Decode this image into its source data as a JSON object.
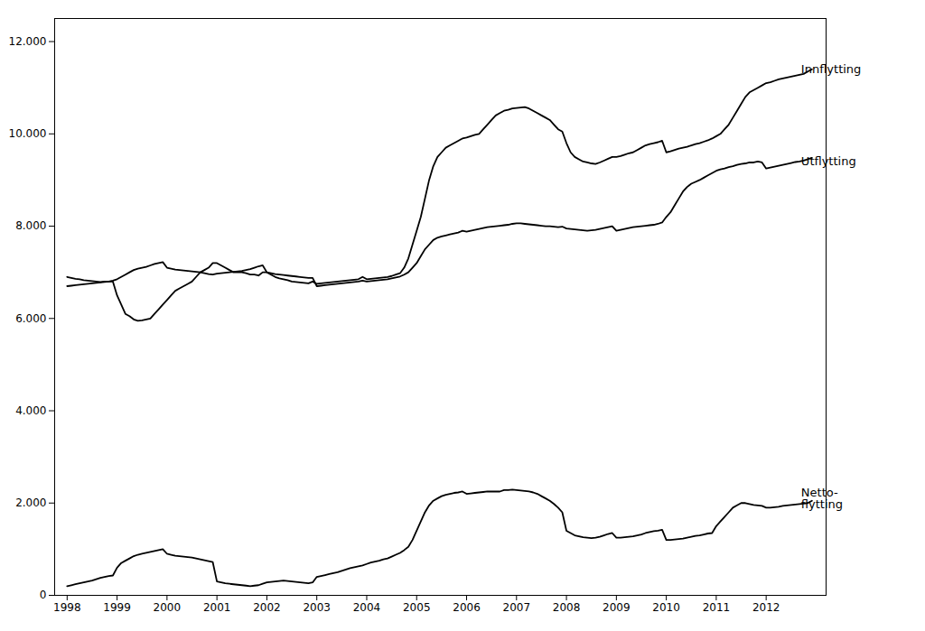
{
  "chart_data": {
    "type": "line",
    "x": [
      1998,
      1998.083333333333,
      1998.166666666667,
      1998.25,
      1998.333333333333,
      1998.416666666667,
      1998.5,
      1998.583333333333,
      1998.666666666667,
      1998.75,
      1998.833333333333,
      1998.916666666667,
      1999,
      1999.083333333333,
      1999.166666666667,
      1999.25,
      1999.333333333333,
      1999.416666666667,
      1999.5,
      1999.583333333333,
      1999.666666666667,
      1999.75,
      1999.833333333333,
      1999.916666666667,
      2000,
      2000.083333333333,
      2000.166666666667,
      2000.25,
      2000.333333333333,
      2000.416666666667,
      2000.5,
      2000.583333333333,
      2000.666666666667,
      2000.75,
      2000.833333333333,
      2000.916666666667,
      2001,
      2001.083333333333,
      2001.166666666667,
      2001.25,
      2001.333333333333,
      2001.416666666667,
      2001.5,
      2001.583333333333,
      2001.666666666667,
      2001.75,
      2001.833333333333,
      2001.916666666667,
      2002,
      2002.083333333333,
      2002.166666666667,
      2002.25,
      2002.333333333333,
      2002.416666666667,
      2002.5,
      2002.583333333333,
      2002.666666666667,
      2002.75,
      2002.833333333333,
      2002.916666666667,
      2003,
      2003.083333333333,
      2003.166666666667,
      2003.25,
      2003.333333333333,
      2003.416666666667,
      2003.5,
      2003.583333333333,
      2003.666666666667,
      2003.75,
      2003.833333333333,
      2003.916666666667,
      2004,
      2004.083333333333,
      2004.166666666667,
      2004.25,
      2004.333333333333,
      2004.416666666667,
      2004.5,
      2004.583333333333,
      2004.666666666667,
      2004.75,
      2004.833333333333,
      2004.916666666667,
      2005,
      2005.083333333333,
      2005.166666666667,
      2005.25,
      2005.333333333333,
      2005.416666666667,
      2005.5,
      2005.583333333333,
      2005.666666666667,
      2005.75,
      2005.833333333333,
      2005.916666666667,
      2006,
      2006.083333333333,
      2006.166666666667,
      2006.25,
      2006.333333333333,
      2006.416666666667,
      2006.5,
      2006.583333333333,
      2006.666666666667,
      2006.75,
      2006.833333333333,
      2006.916666666667,
      2007,
      2007.083333333333,
      2007.166666666667,
      2007.25,
      2007.333333333333,
      2007.416666666667,
      2007.5,
      2007.583333333333,
      2007.666666666667,
      2007.75,
      2007.833333333333,
      2007.916666666667,
      2008,
      2008.083333333333,
      2008.166666666667,
      2008.25,
      2008.333333333333,
      2008.416666666667,
      2008.5,
      2008.583333333333,
      2008.666666666667,
      2008.75,
      2008.833333333333,
      2008.916666666667,
      2009,
      2009.083333333333,
      2009.166666666667,
      2009.25,
      2009.333333333333,
      2009.416666666667,
      2009.5,
      2009.583333333333,
      2009.666666666667,
      2009.75,
      2009.833333333333,
      2009.916666666667,
      2010,
      2010.083333333333,
      2010.166666666667,
      2010.25,
      2010.333333333333,
      2010.416666666667,
      2010.5,
      2010.583333333333,
      2010.666666666667,
      2010.75,
      2010.833333333333,
      2010.916666666667,
      2011,
      2011.083333333333,
      2011.166666666667,
      2011.25,
      2011.333333333333,
      2011.416666666667,
      2011.5,
      2011.583333333333,
      2011.666666666667,
      2011.75,
      2011.833333333333,
      2011.916666666667,
      2012,
      2012.083333333333,
      2012.166666666667,
      2012.25,
      2012.333333333333,
      2012.416666666667,
      2012.5,
      2012.583333333333,
      2012.666666666667,
      2012.75,
      2012.833333333333,
      2012.916666666667
    ],
    "series": [
      {
        "values": [
          6900,
          6880,
          6860,
          6850,
          6830,
          6820,
          6810,
          6800,
          6790,
          6800,
          6800,
          6800,
          6500,
          6300,
          6100,
          6050,
          5980,
          5950,
          5960,
          5980,
          6000,
          6100,
          6200,
          6300,
          6400,
          6500,
          6600,
          6650,
          6700,
          6750,
          6800,
          6900,
          7000,
          7050,
          7100,
          7200,
          7200,
          7150,
          7100,
          7050,
          7000,
          7000,
          7000,
          6980,
          6950,
          6950,
          6930,
          7000,
          7000,
          6950,
          6900,
          6870,
          6850,
          6830,
          6800,
          6790,
          6780,
          6770,
          6760,
          6800,
          6750,
          6760,
          6770,
          6780,
          6790,
          6800,
          6810,
          6820,
          6830,
          6840,
          6850,
          6900,
          6850,
          6860,
          6870,
          6880,
          6890,
          6900,
          6920,
          6950,
          6980,
          7100,
          7300,
          7600,
          7900,
          8200,
          8600,
          9000,
          9300,
          9500,
          9600,
          9700,
          9750,
          9800,
          9850,
          9900,
          9920,
          9950,
          9980,
          10000,
          10100,
          10200,
          10300,
          10400,
          10450,
          10500,
          10520,
          10550,
          10560,
          10570,
          10580,
          10550,
          10500,
          10450,
          10400,
          10350,
          10300,
          10200,
          10100,
          10050,
          9800,
          9600,
          9500,
          9450,
          9400,
          9380,
          9360,
          9350,
          9380,
          9420,
          9460,
          9500,
          9500,
          9520,
          9550,
          9580,
          9600,
          9650,
          9700,
          9750,
          9780,
          9800,
          9820,
          9850,
          9600,
          9620,
          9650,
          9680,
          9700,
          9720,
          9750,
          9780,
          9800,
          9830,
          9860,
          9900,
          9950,
          10000,
          10100,
          10200,
          10350,
          10500,
          10650,
          10800,
          10900,
          10950,
          11000,
          11050,
          11100,
          11120,
          11150,
          11180,
          11200,
          11220,
          11240,
          11260,
          11280,
          11300,
          11350,
          11400
        ]
      },
      {
        "values": [
          6700,
          6710,
          6720,
          6730,
          6740,
          6750,
          6760,
          6770,
          6780,
          6790,
          6800,
          6820,
          6850,
          6900,
          6950,
          7000,
          7050,
          7080,
          7100,
          7120,
          7150,
          7180,
          7200,
          7220,
          7100,
          7080,
          7060,
          7050,
          7040,
          7030,
          7020,
          7010,
          7000,
          6980,
          6960,
          6950,
          6970,
          6980,
          6990,
          7000,
          7010,
          7020,
          7030,
          7050,
          7070,
          7100,
          7130,
          7150,
          7000,
          6980,
          6960,
          6950,
          6940,
          6930,
          6920,
          6910,
          6900,
          6890,
          6880,
          6880,
          6700,
          6710,
          6720,
          6730,
          6740,
          6750,
          6760,
          6770,
          6780,
          6790,
          6800,
          6820,
          6800,
          6810,
          6820,
          6830,
          6840,
          6850,
          6870,
          6890,
          6910,
          6950,
          7000,
          7100,
          7200,
          7350,
          7500,
          7600,
          7700,
          7750,
          7780,
          7800,
          7820,
          7840,
          7860,
          7900,
          7880,
          7900,
          7920,
          7940,
          7960,
          7980,
          7990,
          8000,
          8010,
          8020,
          8030,
          8050,
          8060,
          8060,
          8050,
          8040,
          8030,
          8020,
          8010,
          8000,
          8000,
          7990,
          7980,
          7990,
          7950,
          7940,
          7930,
          7920,
          7910,
          7900,
          7910,
          7920,
          7940,
          7960,
          7980,
          8000,
          7900,
          7920,
          7940,
          7960,
          7980,
          7990,
          8000,
          8010,
          8020,
          8030,
          8050,
          8080,
          8200,
          8300,
          8450,
          8600,
          8750,
          8850,
          8920,
          8960,
          9000,
          9050,
          9100,
          9150,
          9200,
          9230,
          9250,
          9280,
          9300,
          9330,
          9350,
          9360,
          9380,
          9380,
          9400,
          9380,
          9250,
          9270,
          9290,
          9310,
          9330,
          9350,
          9370,
          9390,
          9400,
          9420,
          9450,
          9480
        ]
      },
      {
        "values": [
          200,
          220,
          240,
          260,
          280,
          300,
          320,
          350,
          380,
          400,
          420,
          430,
          600,
          700,
          750,
          800,
          850,
          880,
          900,
          920,
          940,
          960,
          980,
          1000,
          900,
          880,
          860,
          850,
          840,
          830,
          820,
          800,
          780,
          760,
          740,
          720,
          300,
          280,
          260,
          250,
          240,
          230,
          220,
          210,
          200,
          210,
          220,
          250,
          280,
          290,
          300,
          310,
          320,
          310,
          300,
          290,
          280,
          270,
          260,
          280,
          400,
          420,
          440,
          460,
          480,
          500,
          530,
          560,
          590,
          610,
          630,
          650,
          680,
          710,
          730,
          750,
          780,
          800,
          840,
          880,
          920,
          980,
          1050,
          1200,
          1400,
          1600,
          1800,
          1950,
          2050,
          2100,
          2150,
          2180,
          2200,
          2220,
          2230,
          2250,
          2200,
          2210,
          2220,
          2230,
          2240,
          2250,
          2250,
          2250,
          2250,
          2280,
          2280,
          2290,
          2280,
          2270,
          2260,
          2250,
          2230,
          2200,
          2150,
          2100,
          2050,
          1980,
          1900,
          1800,
          1400,
          1350,
          1300,
          1280,
          1260,
          1250,
          1240,
          1250,
          1270,
          1300,
          1330,
          1350,
          1250,
          1250,
          1260,
          1270,
          1280,
          1300,
          1320,
          1350,
          1370,
          1390,
          1400,
          1420,
          1200,
          1200,
          1210,
          1220,
          1230,
          1250,
          1270,
          1290,
          1300,
          1320,
          1340,
          1350,
          1500,
          1600,
          1700,
          1800,
          1900,
          1950,
          2000,
          2000,
          1980,
          1960,
          1950,
          1940,
          1900,
          1900,
          1910,
          1920,
          1940,
          1950,
          1960,
          1970,
          1980,
          1990,
          2000,
          2050
        ]
      }
    ],
    "annotations": [
      {
        "text": "Innflytting",
        "x": 2012.7,
        "y": 11400
      },
      {
        "text": "Utflytting",
        "x": 2012.7,
        "y": 9400
      },
      {
        "text": "Netto-\nflytting",
        "x": 2012.7,
        "y": 2100
      }
    ],
    "xlim": [
      1997.75,
      2013.2
    ],
    "xticks": [
      1998,
      1999,
      2000,
      2001,
      2002,
      2003,
      2004,
      2005,
      2006,
      2007,
      2008,
      2009,
      2010,
      2011,
      2012
    ],
    "ylim": [
      0,
      12500
    ],
    "yticks": [
      0,
      {
        "value": 2000,
        "label": "2.000"
      },
      {
        "value": 4000,
        "label": "4.000"
      },
      {
        "value": 6000,
        "label": "6.000"
      },
      {
        "value": 8000,
        "label": "8.000"
      },
      {
        "value": 10000,
        "label": "10.000"
      },
      {
        "value": 12000,
        "label": "12.000"
      }
    ],
    "grid": false
  }
}
